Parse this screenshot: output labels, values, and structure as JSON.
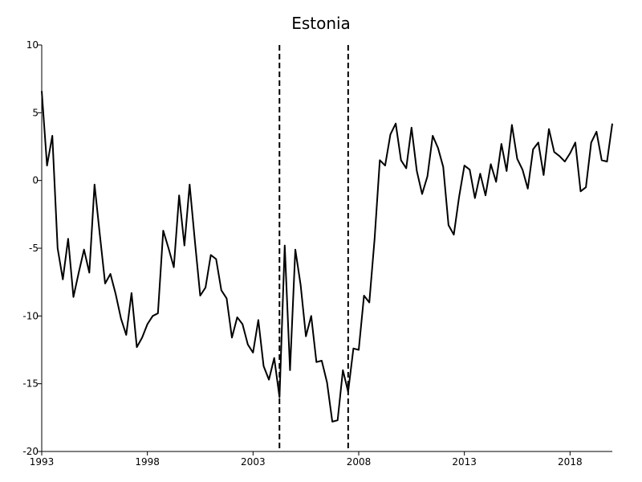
{
  "chart_data": {
    "type": "line",
    "title": "Estonia",
    "xlabel": "",
    "ylabel": "",
    "xlim": [
      1993.0,
      2020.0
    ],
    "ylim": [
      -20,
      10
    ],
    "x_ticks": [
      1993,
      1998,
      2003,
      2008,
      2013,
      2018
    ],
    "y_ticks": [
      -20,
      -15,
      -10,
      -5,
      0,
      5,
      10
    ],
    "grid": false,
    "vertical_reference_lines": [
      2004.25,
      2007.5
    ],
    "series": [
      {
        "x": [
          1993.0,
          1993.25,
          1993.5,
          1993.75,
          1994.0,
          1994.25,
          1994.5,
          1994.75,
          1995.0,
          1995.25,
          1995.5,
          1995.75,
          1996.0,
          1996.25,
          1996.5,
          1996.75,
          1997.0,
          1997.25,
          1997.5,
          1997.75,
          1998.0,
          1998.25,
          1998.5,
          1998.75,
          1999.0,
          1999.25,
          1999.5,
          1999.75,
          2000.0,
          2000.25,
          2000.5,
          2000.75,
          2001.0,
          2001.25,
          2001.5,
          2001.75,
          2002.0,
          2002.25,
          2002.5,
          2002.75,
          2003.0,
          2003.25,
          2003.5,
          2003.75,
          2004.0,
          2004.25,
          2004.5,
          2004.75,
          2005.0,
          2005.25,
          2005.5,
          2005.75,
          2006.0,
          2006.25,
          2006.5,
          2006.75,
          2007.0,
          2007.25,
          2007.5,
          2007.75,
          2008.0,
          2008.25,
          2008.5,
          2008.75,
          2009.0,
          2009.25,
          2009.5,
          2009.75,
          2010.0,
          2010.25,
          2010.5,
          2010.75,
          2011.0,
          2011.25,
          2011.5,
          2011.75,
          2012.0,
          2012.25,
          2012.5,
          2012.75,
          2013.0,
          2013.25,
          2013.5,
          2013.75,
          2014.0,
          2014.25,
          2014.5,
          2014.75,
          2015.0,
          2015.25,
          2015.5,
          2015.75,
          2016.0,
          2016.25,
          2016.5,
          2016.75,
          2017.0,
          2017.25,
          2017.5,
          2017.75,
          2018.0,
          2018.25,
          2018.5,
          2018.75,
          2019.0,
          2019.25,
          2019.5,
          2019.75,
          2020.0
        ],
        "values": [
          6.6,
          1.1,
          3.3,
          -5.0,
          -7.3,
          -4.3,
          -8.6,
          -6.8,
          -5.1,
          -6.8,
          -0.3,
          -4.0,
          -7.6,
          -6.9,
          -8.4,
          -10.2,
          -11.4,
          -8.3,
          -12.3,
          -11.6,
          -10.6,
          -10.0,
          -9.8,
          -3.7,
          -5.0,
          -6.4,
          -1.1,
          -4.8,
          -0.3,
          -4.5,
          -8.5,
          -7.9,
          -5.5,
          -5.8,
          -8.1,
          -8.7,
          -11.6,
          -10.1,
          -10.6,
          -12.1,
          -12.7,
          -10.3,
          -13.7,
          -14.7,
          -13.1,
          -16.0,
          -4.8,
          -14.0,
          -5.1,
          -7.7,
          -11.5,
          -10.0,
          -13.4,
          -13.3,
          -14.9,
          -17.8,
          -17.7,
          -14.0,
          -15.6,
          -12.4,
          -12.5,
          -8.5,
          -9.0,
          -4.3,
          1.5,
          1.1,
          3.4,
          4.2,
          1.5,
          0.9,
          3.9,
          0.7,
          -1.0,
          0.3,
          3.3,
          2.4,
          1.0,
          -3.3,
          -4.0,
          -1.2,
          1.1,
          0.8,
          -1.3,
          0.5,
          -1.1,
          1.2,
          -0.1,
          2.7,
          0.7,
          4.1,
          1.6,
          0.8,
          -0.6,
          2.3,
          2.8,
          0.4,
          3.8,
          2.1,
          1.8,
          1.4,
          2.0,
          2.8,
          -0.8,
          -0.5,
          2.8,
          3.6,
          1.5,
          1.4,
          4.2
        ]
      }
    ]
  }
}
